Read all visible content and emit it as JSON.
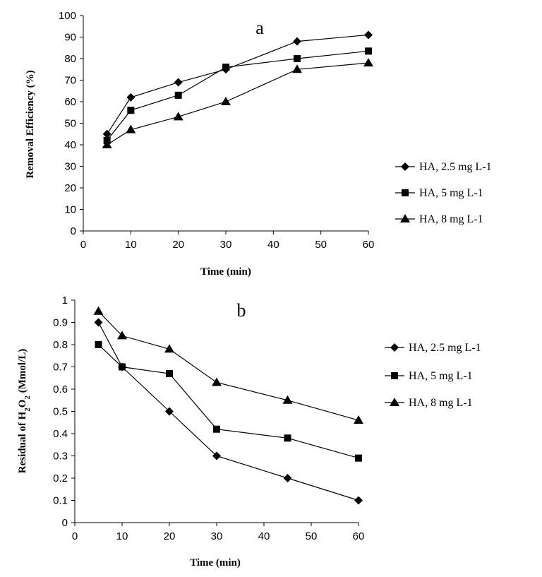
{
  "chart_data": [
    {
      "type": "line",
      "panel_label": "a",
      "xlabel": "Time (min)",
      "ylabel": "Removal  Efficiency  (%)",
      "xlim": [
        0,
        60
      ],
      "ylim": [
        0,
        100
      ],
      "xticks": [
        0,
        10,
        20,
        30,
        40,
        50,
        60
      ],
      "yticks": [
        0,
        10,
        20,
        30,
        40,
        50,
        60,
        70,
        80,
        90,
        100
      ],
      "x": [
        5,
        10,
        20,
        30,
        45,
        60
      ],
      "grid": false,
      "legend_position": "right",
      "series": [
        {
          "name": "HA, 2.5 mg L-1",
          "marker": "diamond",
          "values": [
            45,
            62,
            69,
            75,
            88,
            91
          ]
        },
        {
          "name": "HA, 5 mg L-1",
          "marker": "square",
          "values": [
            42,
            56,
            63,
            76,
            80,
            83.5
          ]
        },
        {
          "name": "HA, 8 mg L-1",
          "marker": "triangle",
          "values": [
            40,
            47,
            53,
            60,
            75,
            78
          ]
        }
      ]
    },
    {
      "type": "line",
      "panel_label": "b",
      "xlabel": "Time (min)",
      "ylabel_parts": [
        "Residual  of H",
        "2",
        "O",
        "2",
        " (Mmol/L)"
      ],
      "xlim": [
        0,
        60
      ],
      "ylim": [
        0,
        1
      ],
      "xticks": [
        0,
        10,
        20,
        30,
        40,
        50,
        60
      ],
      "yticks": [
        0,
        0.1,
        0.2,
        0.3,
        0.4,
        0.5,
        0.6,
        0.7,
        0.8,
        0.9,
        1
      ],
      "x": [
        5,
        10,
        20,
        30,
        45,
        60
      ],
      "grid": false,
      "legend_position": "right",
      "series": [
        {
          "name": "HA, 2.5 mg L-1",
          "marker": "diamond",
          "values": [
            0.9,
            0.7,
            0.5,
            0.3,
            0.2,
            0.1
          ]
        },
        {
          "name": "HA, 5 mg L-1",
          "marker": "square",
          "values": [
            0.8,
            0.7,
            0.67,
            0.42,
            0.38,
            0.29
          ]
        },
        {
          "name": "HA, 8 mg L-1",
          "marker": "triangle",
          "values": [
            0.95,
            0.84,
            0.78,
            0.63,
            0.55,
            0.46
          ]
        }
      ]
    }
  ]
}
